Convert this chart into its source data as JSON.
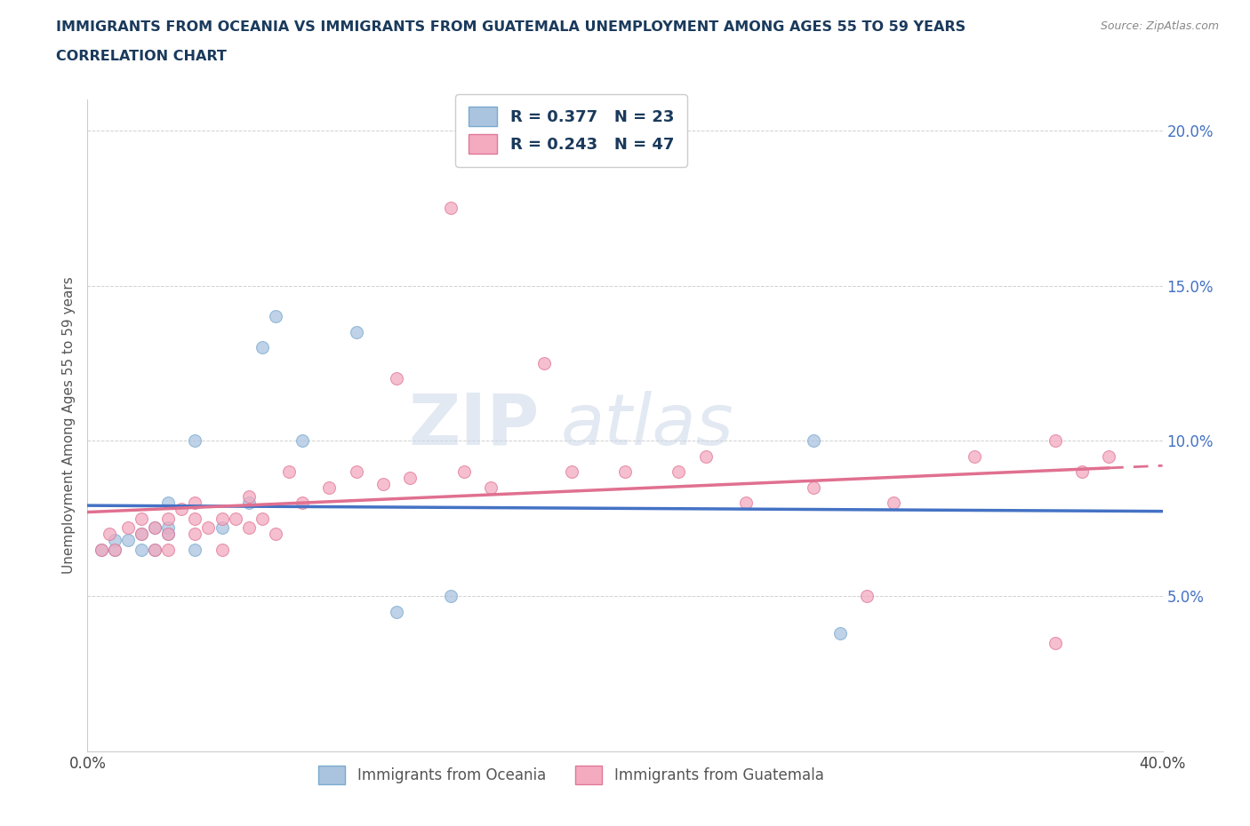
{
  "title_line1": "IMMIGRANTS FROM OCEANIA VS IMMIGRANTS FROM GUATEMALA UNEMPLOYMENT AMONG AGES 55 TO 59 YEARS",
  "title_line2": "CORRELATION CHART",
  "source_text": "Source: ZipAtlas.com",
  "ylabel": "Unemployment Among Ages 55 to 59 years",
  "xlim": [
    0.0,
    0.4
  ],
  "ylim": [
    0.0,
    0.21
  ],
  "xticks": [
    0.0,
    0.05,
    0.1,
    0.15,
    0.2,
    0.25,
    0.3,
    0.35,
    0.4
  ],
  "ytick_positions": [
    0.05,
    0.1,
    0.15,
    0.2
  ],
  "ytick_labels": [
    "5.0%",
    "10.0%",
    "15.0%",
    "20.0%"
  ],
  "oceania_color": "#aac4e0",
  "oceania_edge": "#7aaad0",
  "guatemala_color": "#f4aabf",
  "guatemala_edge": "#e07898",
  "line_oceania_color": "#4472c4",
  "line_guatemala_color": "#e07090",
  "watermark_zip": "ZIP",
  "watermark_atlas": "atlas",
  "R_oceania": "0.377",
  "N_oceania": "23",
  "R_guatemala": "0.243",
  "N_guatemala": "47",
  "oceania_x": [
    0.005,
    0.01,
    0.01,
    0.015,
    0.02,
    0.02,
    0.025,
    0.025,
    0.03,
    0.03,
    0.03,
    0.04,
    0.04,
    0.05,
    0.06,
    0.065,
    0.07,
    0.08,
    0.1,
    0.115,
    0.135,
    0.27,
    0.28
  ],
  "oceania_y": [
    0.065,
    0.065,
    0.068,
    0.068,
    0.065,
    0.07,
    0.065,
    0.072,
    0.07,
    0.072,
    0.08,
    0.1,
    0.065,
    0.072,
    0.08,
    0.13,
    0.14,
    0.1,
    0.135,
    0.045,
    0.05,
    0.1,
    0.038
  ],
  "guatemala_x": [
    0.005,
    0.008,
    0.01,
    0.015,
    0.02,
    0.02,
    0.025,
    0.025,
    0.03,
    0.03,
    0.03,
    0.035,
    0.04,
    0.04,
    0.04,
    0.045,
    0.05,
    0.05,
    0.055,
    0.06,
    0.06,
    0.065,
    0.07,
    0.075,
    0.08,
    0.09,
    0.1,
    0.11,
    0.115,
    0.12,
    0.135,
    0.14,
    0.15,
    0.17,
    0.18,
    0.2,
    0.22,
    0.23,
    0.245,
    0.27,
    0.29,
    0.3,
    0.33,
    0.36,
    0.36,
    0.37,
    0.38
  ],
  "guatemala_y": [
    0.065,
    0.07,
    0.065,
    0.072,
    0.07,
    0.075,
    0.065,
    0.072,
    0.065,
    0.07,
    0.075,
    0.078,
    0.07,
    0.075,
    0.08,
    0.072,
    0.065,
    0.075,
    0.075,
    0.072,
    0.082,
    0.075,
    0.07,
    0.09,
    0.08,
    0.085,
    0.09,
    0.086,
    0.12,
    0.088,
    0.175,
    0.09,
    0.085,
    0.125,
    0.09,
    0.09,
    0.09,
    0.095,
    0.08,
    0.085,
    0.05,
    0.08,
    0.095,
    0.035,
    0.1,
    0.09,
    0.095
  ],
  "marker_size": 100
}
